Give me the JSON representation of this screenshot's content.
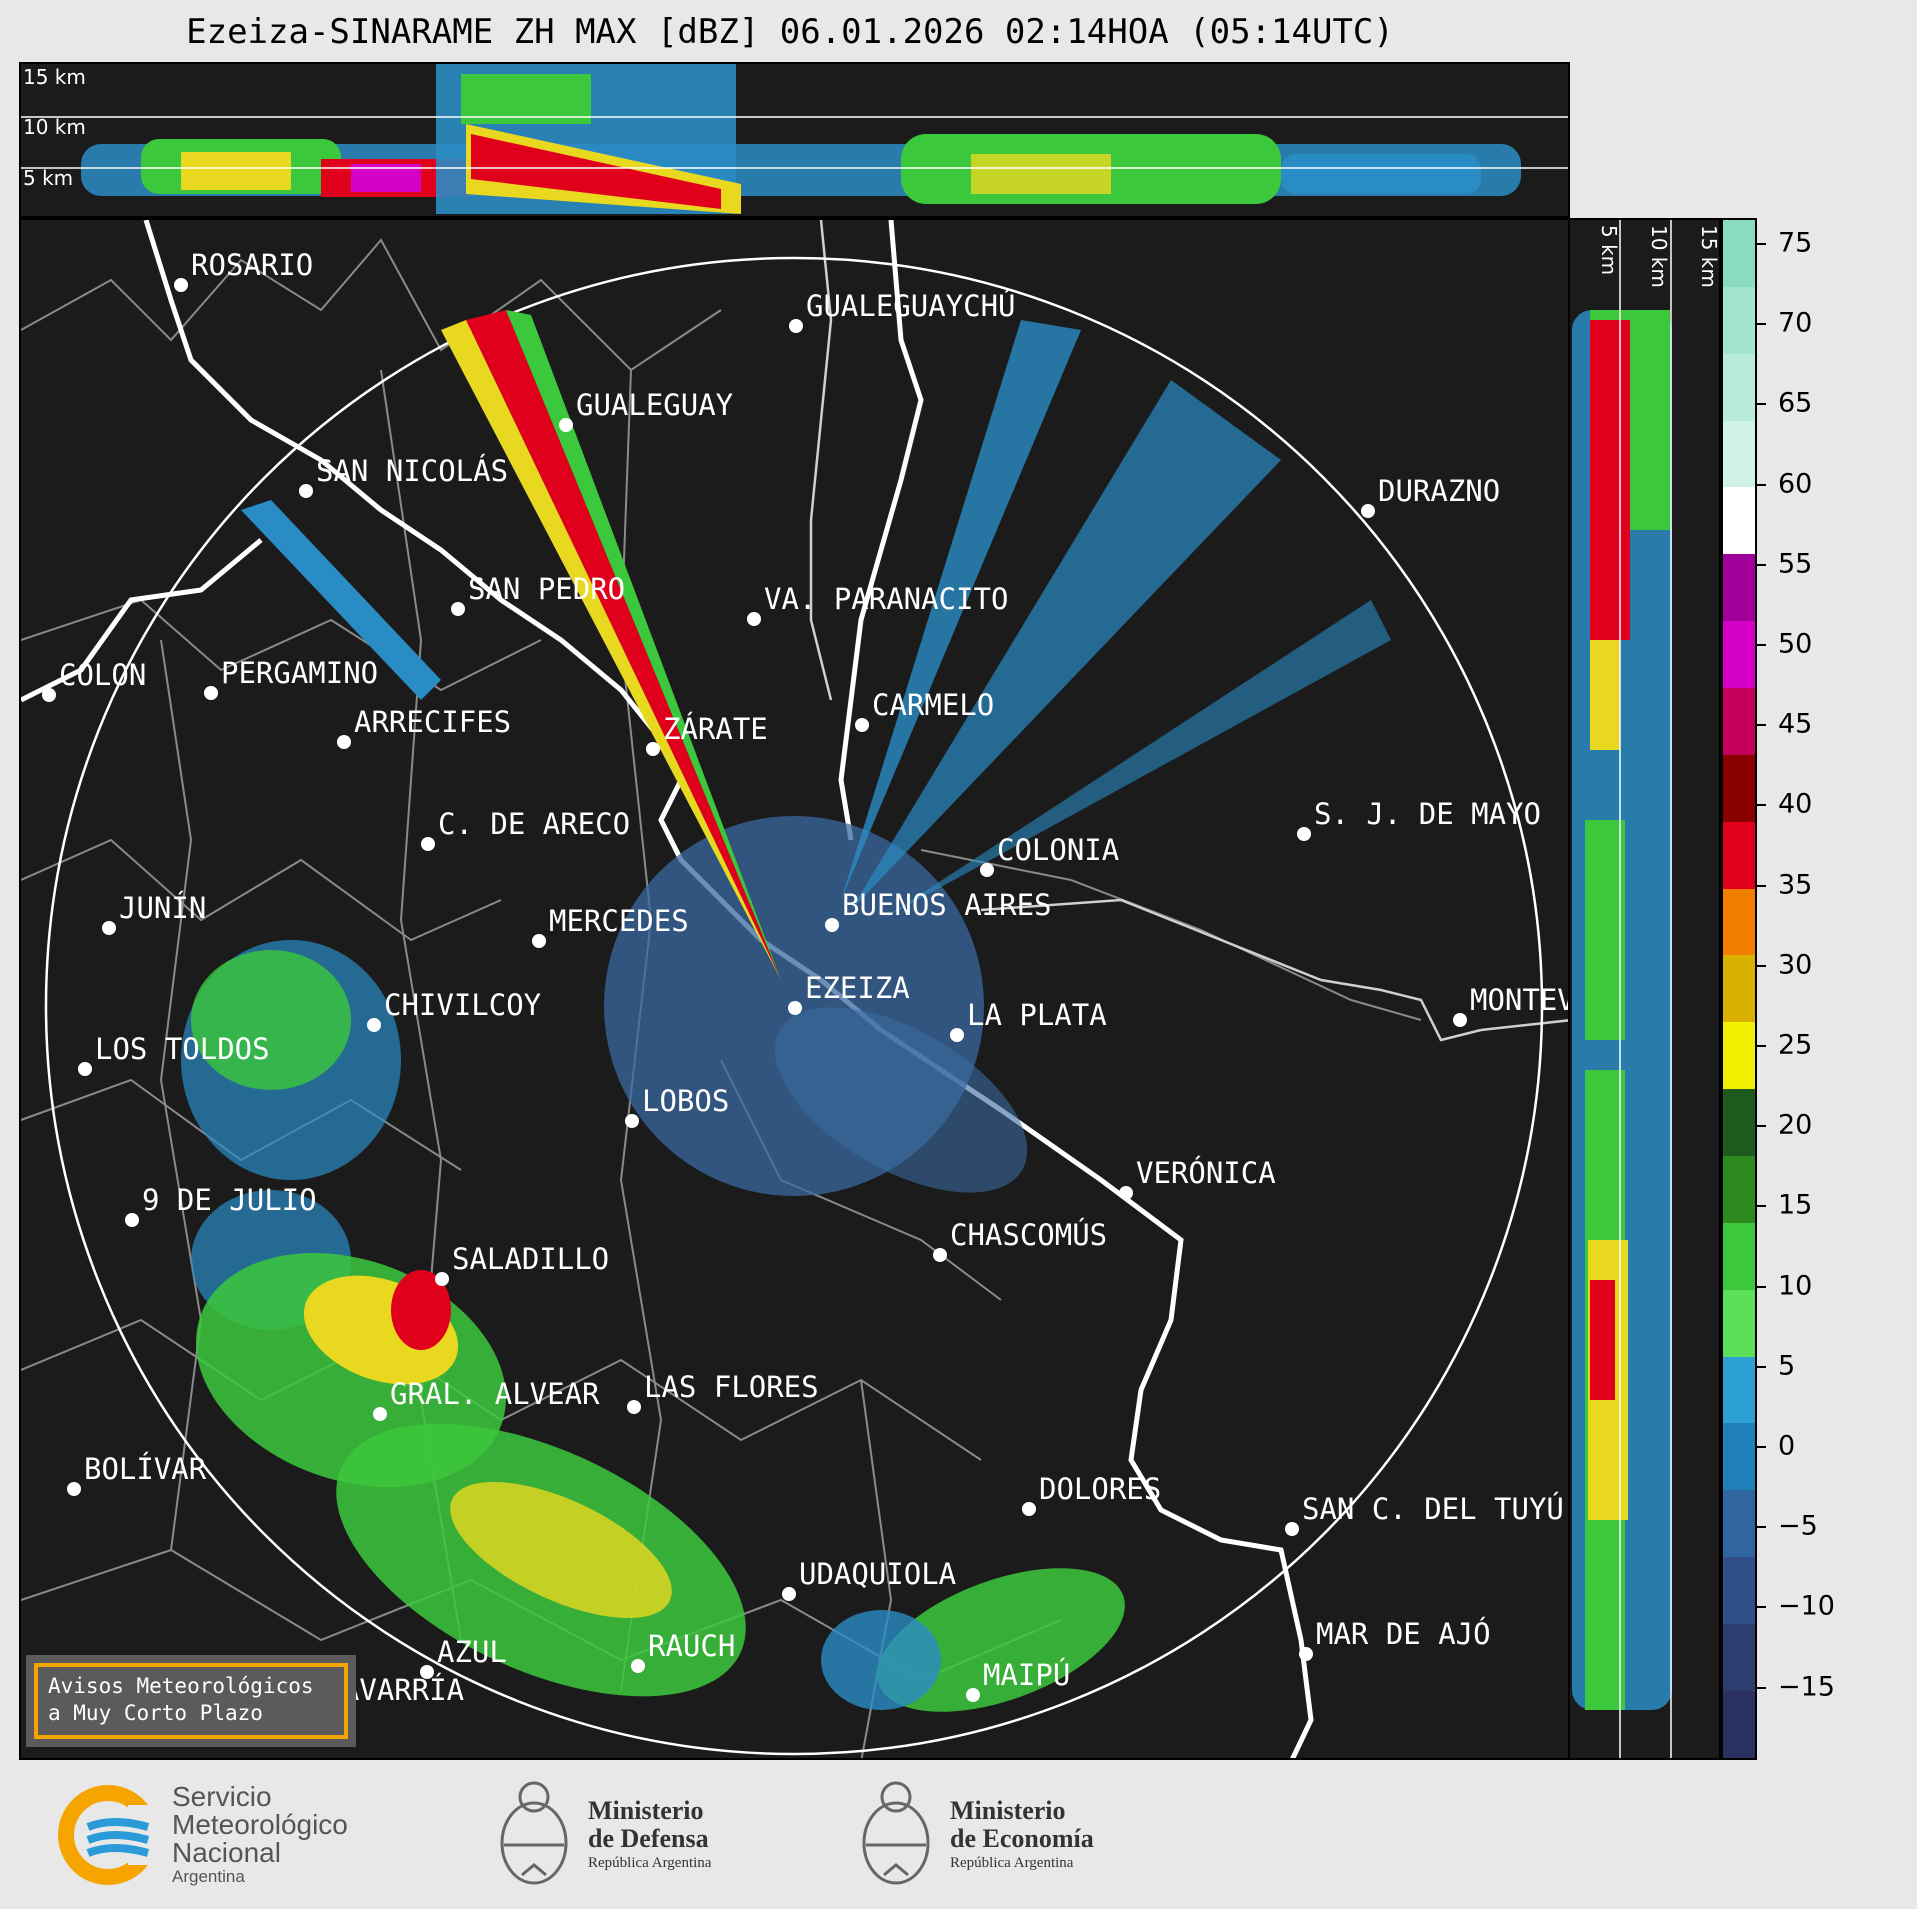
{
  "title": "Ezeiza-SINARAME ZH MAX [dBZ] 06.01.2026 02:14HOA (05:14UTC)",
  "top_panel": {
    "altitudes": [
      "15 km",
      "10 km",
      "5 km"
    ]
  },
  "right_panel": {
    "altitudes": [
      "5 km",
      "10 km",
      "15 km"
    ]
  },
  "cities": [
    {
      "name": "ROSARIO"
    },
    {
      "name": "GUALEGUAYCHÚ"
    },
    {
      "name": "GUALEGUAY"
    },
    {
      "name": "SAN NICOLÁS"
    },
    {
      "name": "DURAZNO"
    },
    {
      "name": "SAN PEDRO"
    },
    {
      "name": "VA. PARANACITO"
    },
    {
      "name": "COLON"
    },
    {
      "name": "PERGAMINO"
    },
    {
      "name": "CARMELO"
    },
    {
      "name": "ARRECIFES"
    },
    {
      "name": "ZÁRATE"
    },
    {
      "name": "S. J. DE MAYO"
    },
    {
      "name": "C. DE ARECO"
    },
    {
      "name": "COLONIA"
    },
    {
      "name": "JUNÍN"
    },
    {
      "name": "MERCEDES"
    },
    {
      "name": "BUENOS AIRES"
    },
    {
      "name": "MONTEVIDEO"
    },
    {
      "name": "EZEIZA"
    },
    {
      "name": "CHIVILCOY"
    },
    {
      "name": "LA PLATA"
    },
    {
      "name": "LOS TOLDOS"
    },
    {
      "name": "LOBOS"
    },
    {
      "name": "VERÓNICA"
    },
    {
      "name": "9 DE JULIO"
    },
    {
      "name": "CHASCOMÚS"
    },
    {
      "name": "SALADILLO"
    },
    {
      "name": "GRAL. ALVEAR"
    },
    {
      "name": "LAS FLORES"
    },
    {
      "name": "BOLÍVAR"
    },
    {
      "name": "DOLORES"
    },
    {
      "name": "SAN C. DEL TUYÚ"
    },
    {
      "name": "UDAQUIOLA"
    },
    {
      "name": "MAR DE AJÓ"
    },
    {
      "name": "RAUCH"
    },
    {
      "name": "AZUL"
    },
    {
      "name": "OLAVARRÍA"
    },
    {
      "name": "MAIPÚ"
    }
  ],
  "colorbar": {
    "unit": "dBZ",
    "ticks": [
      "75",
      "70",
      "65",
      "60",
      "55",
      "50",
      "45",
      "40",
      "35",
      "30",
      "25",
      "20",
      "15",
      "10",
      "5",
      "0",
      "−5",
      "−10",
      "−15"
    ],
    "colors_top_to_bottom": [
      "#8adcc0",
      "#a2e4cc",
      "#b8ecd8",
      "#d0f3e6",
      "#ffffff",
      "#a0009a",
      "#d400c8",
      "#c4005a",
      "#8a0000",
      "#e0001c",
      "#f07f00",
      "#d8b000",
      "#f0f000",
      "#1e5a1e",
      "#2c8a20",
      "#3cc83c",
      "#5ce05a",
      "#2ca0d0",
      "#2080b8",
      "#3066a0",
      "#304e88",
      "#2d3d70",
      "#2a3060"
    ]
  },
  "aviso": {
    "line1": "Avisos Meteorológicos",
    "line2": "a Muy Corto Plazo"
  },
  "footer": {
    "smn": {
      "line1": "Servicio",
      "line2": "Meteorológico",
      "line3": "Nacional",
      "line4": "Argentina"
    },
    "defensa": {
      "line1": "Ministerio",
      "line2": "de Defensa",
      "line3": "República Argentina"
    },
    "economia": {
      "line1": "Ministerio",
      "line2": "de Economía",
      "line3": "República Argentina"
    }
  }
}
